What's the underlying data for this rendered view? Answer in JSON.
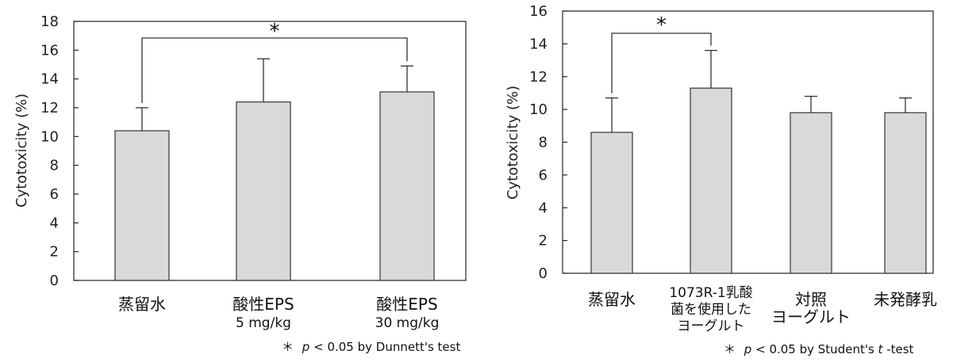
{
  "chart_data": [
    {
      "type": "bar",
      "ylabel": "Cytotoxicity (%)",
      "ylim": [
        0,
        18
      ],
      "yticks": [
        0,
        2,
        4,
        6,
        8,
        10,
        12,
        14,
        16,
        18
      ],
      "grid": false,
      "categories": [
        [
          "蒸留水"
        ],
        [
          "酸性EPS",
          "5 mg/kg"
        ],
        [
          "酸性EPS",
          "30 mg/kg"
        ]
      ],
      "values": [
        10.4,
        12.4,
        13.1
      ],
      "errors": [
        1.6,
        3.0,
        1.8
      ],
      "significance": {
        "between": [
          0,
          2
        ],
        "marker": "*"
      },
      "footnote": {
        "star": "＊",
        "p": "p",
        "rest": " < 0.05 by Dunnett's test"
      }
    },
    {
      "type": "bar",
      "ylabel": "Cytotoxicity (%)",
      "ylim": [
        0,
        16
      ],
      "yticks": [
        0,
        2,
        4,
        6,
        8,
        10,
        12,
        14,
        16
      ],
      "grid": false,
      "categories": [
        [
          "蒸留水"
        ],
        [
          "1073R-1乳酸",
          "菌を使用した",
          "ヨーグルト"
        ],
        [
          "対照",
          "ヨーグルト"
        ],
        [
          "未発酵乳"
        ]
      ],
      "values": [
        8.6,
        11.3,
        9.8,
        9.8
      ],
      "errors": [
        2.1,
        2.3,
        1.0,
        0.9
      ],
      "significance": {
        "between": [
          0,
          1
        ],
        "marker": "*"
      },
      "footnote": {
        "star": "＊",
        "p": "p",
        "rest": " < 0.05 by Student's ",
        "t": "t",
        "rest2": "-test"
      }
    }
  ]
}
